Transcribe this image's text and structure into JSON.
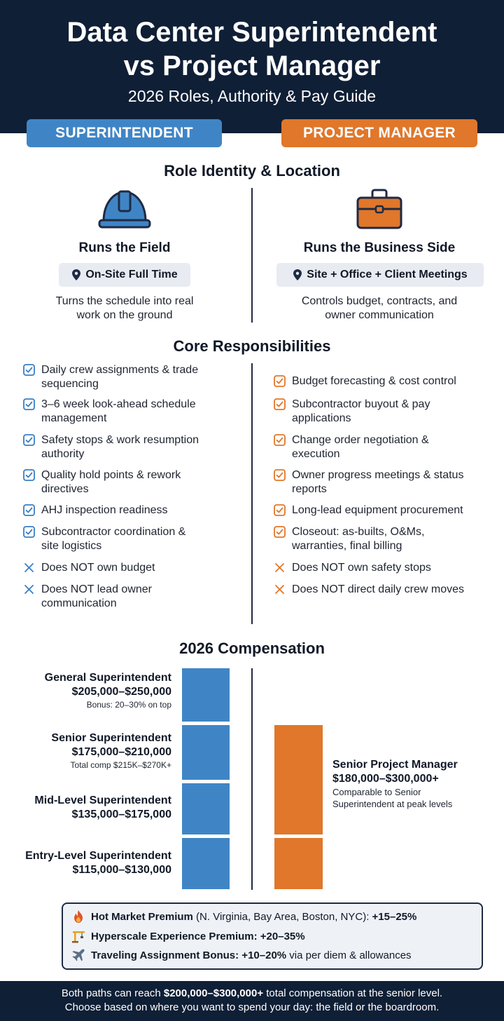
{
  "header": {
    "title_line1": "Data Center Superintendent",
    "title_line2": "vs Project Manager",
    "subtitle": "2026 Roles, Authority & Pay Guide"
  },
  "columns": {
    "superintendent_label": "SUPERINTENDENT",
    "pm_label": "PROJECT MANAGER"
  },
  "role_identity": {
    "section_title": "Role Identity & Location",
    "superintendent": {
      "icon": "hard-hat-icon",
      "heading": "Runs the Field",
      "location": "On-Site Full Time",
      "desc_line1": "Turns the schedule into real",
      "desc_line2": "work on the ground"
    },
    "pm": {
      "icon": "briefcase-icon",
      "heading": "Runs the Business Side",
      "location": "Site + Office + Client Meetings",
      "desc_line1": "Controls budget, contracts, and",
      "desc_line2": "owner communication"
    }
  },
  "responsibilities": {
    "section_title": "Core Responsibilities",
    "superintendent": [
      {
        "type": "check",
        "line1": "Daily crew assignments & trade",
        "line2": "sequencing"
      },
      {
        "type": "check",
        "line1": "3–6 week look-ahead schedule",
        "line2": "management"
      },
      {
        "type": "check",
        "line1": "Safety stops & work resumption",
        "line2": "authority"
      },
      {
        "type": "check",
        "line1": "Quality hold points & rework",
        "line2": "directives"
      },
      {
        "type": "check",
        "line1": "AHJ inspection readiness",
        "line2": ""
      },
      {
        "type": "check",
        "line1": "Subcontractor coordination &",
        "line2": "site logistics"
      },
      {
        "type": "cross",
        "line1": "Does NOT own budget",
        "line2": ""
      },
      {
        "type": "cross",
        "line1": "Does NOT lead owner",
        "line2": "communication"
      }
    ],
    "pm": [
      {
        "type": "check",
        "line1": "Budget forecasting & cost control",
        "line2": ""
      },
      {
        "type": "check",
        "line1": "Subcontractor buyout & pay",
        "line2": "applications"
      },
      {
        "type": "check",
        "line1": "Change order negotiation &",
        "line2": "execution"
      },
      {
        "type": "check",
        "line1": "Owner progress meetings & status",
        "line2": "reports"
      },
      {
        "type": "check",
        "line1": "Long-lead equipment procurement",
        "line2": ""
      },
      {
        "type": "check",
        "line1": "Closeout: as-builts, O&Ms,",
        "line2": "warranties, final billing"
      },
      {
        "type": "cross",
        "line1": "Does NOT own safety stops",
        "line2": ""
      },
      {
        "type": "cross",
        "line1": "Does NOT direct daily crew moves",
        "line2": ""
      }
    ]
  },
  "compensation": {
    "section_title": "2026 Compensation",
    "superintendent_levels": [
      {
        "title": "General Superintendent",
        "range": "$205,000–$250,000",
        "note": "Bonus: 20–30% on top",
        "bar_fraction": 1.0
      },
      {
        "title": "Senior Superintendent",
        "range": "$175,000–$210,000",
        "note": "Total comp $215K–$270K+",
        "bar_fraction": 1.0
      },
      {
        "title": "Mid-Level Superintendent",
        "range": "$135,000–$175,000",
        "note": "",
        "bar_fraction": 1.0
      },
      {
        "title": "Entry-Level Superintendent",
        "range": "$115,000–$130,000",
        "note": "",
        "bar_fraction": 1.0
      }
    ],
    "pm": {
      "title": "Senior Project Manager",
      "range": "$180,000–$300,000+",
      "note_line1": "Comparable to Senior",
      "note_line2": "Superintendent at peak levels"
    }
  },
  "premiums": [
    {
      "icon": "fire-icon",
      "bold": "Hot Market Premium",
      "normal": " (N. Virginia, Bay Area, Boston, NYC): ",
      "bold2": "+15–25%"
    },
    {
      "icon": "crane-icon",
      "bold": "Hyperscale Experience Premium: +20–35%",
      "normal": "",
      "bold2": ""
    },
    {
      "icon": "airplane-icon",
      "bold": "Traveling Assignment Bonus: +10–20%",
      "normal": " via per diem & allowances",
      "bold2": ""
    }
  ],
  "footer": {
    "line1_pre": "Both paths can reach ",
    "line1_bold": "$200,000–$300,000+",
    "line1_post": " total compensation at the senior level.",
    "line2": "Choose based on where you want to spend your day: the field or the boardroom."
  },
  "colors": {
    "navy": "#0f1f36",
    "blue": "#3f85c6",
    "orange": "#e0772a"
  }
}
